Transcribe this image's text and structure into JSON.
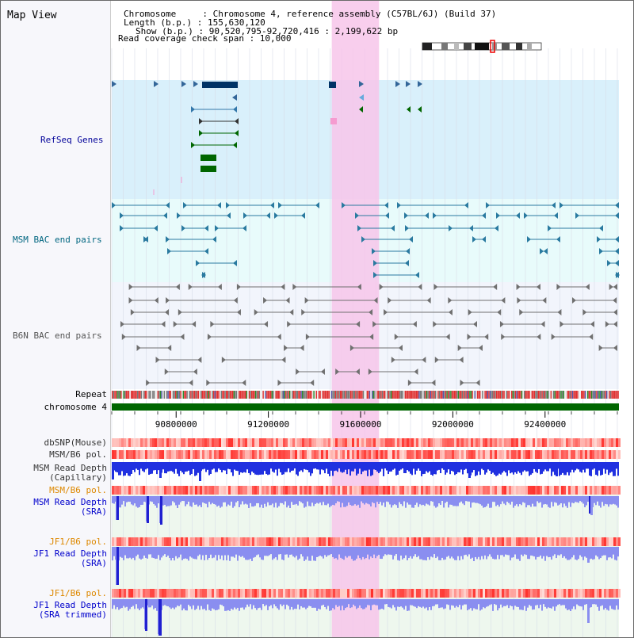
{
  "view": {
    "title": "Map View",
    "header": {
      "line1": "Chromosome     : Chromosome 4, reference assembly (C57BL/6J) (Build 37)",
      "line2": "Length (b.p.) : 155,630,120",
      "line3": "Show (b.p.) : 90,520,795-92,720,416 : 2,199,622 bp",
      "line4": "Read coverage check span : 10,000"
    }
  },
  "tracks": {
    "refseq": "RefSeq Genes",
    "msm_bac": "MSM BAC end pairs",
    "b6n_bac": "B6N BAC end pairs",
    "repeat": "Repeat",
    "chromosome": "chromosome 4",
    "dbsnp": "dbSNP(Mouse)",
    "msm_b6_pol_1": "MSM/B6 pol.",
    "msm_depth_cap_1": "MSM Read Depth",
    "msm_depth_cap_2": "(Capillary)",
    "msm_b6_pol_2": "MSM/B6 pol.",
    "msm_depth_sra_1": "MSM Read Depth",
    "msm_depth_sra_2": "(SRA)",
    "jf1_b6_pol_1": "JF1/B6 pol.",
    "jf1_depth_sra_1": "JF1 Read Depth",
    "jf1_depth_sra_2": "(SRA)",
    "jf1_b6_pol_2": "JF1/B6 pol.",
    "jf1_depth_trim_1": "JF1 Read Depth",
    "jf1_depth_trim_2": "(SRA trimmed)"
  },
  "axis": {
    "range_bp": [
      90520795,
      92720416
    ],
    "ticks": [
      {
        "value": 90800000,
        "label": "90800000"
      },
      {
        "value": 91200000,
        "label": "91200000"
      },
      {
        "value": 91600000,
        "label": "91600000"
      },
      {
        "value": 92000000,
        "label": "92000000"
      },
      {
        "value": 92400000,
        "label": "92400000"
      }
    ]
  },
  "highlight": {
    "start_bp": 91475000,
    "end_bp": 91680000,
    "color": "#f7c6ea"
  },
  "colors": {
    "refseq_bg": "#d9f0fb",
    "msm_bg": "#e8fbfb",
    "b6n_bg": "#f2f5fc",
    "refseq_label": "#000099",
    "msm_label": "#006680",
    "b6n_label": "#555555",
    "orange_label": "#dd8800",
    "blue_label": "#0000cc",
    "dark_label": "#333333",
    "chromosome_bar": "#006600",
    "gene_dark": "#003366",
    "gene_green": "#006600"
  }
}
